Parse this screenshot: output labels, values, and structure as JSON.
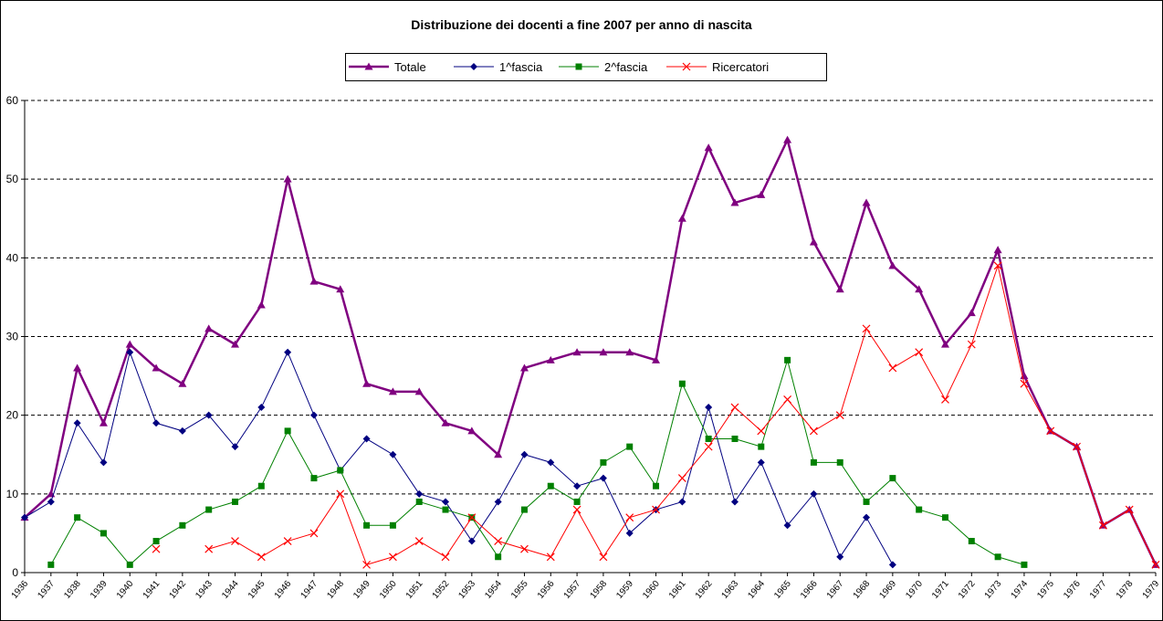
{
  "chart_data": {
    "type": "line",
    "title": "Distribuzione dei docenti a fine 2007 per anno di nascita",
    "categories": [
      "1936",
      "1937",
      "1938",
      "1939",
      "1940",
      "1941",
      "1942",
      "1943",
      "1944",
      "1945",
      "1946",
      "1947",
      "1948",
      "1949",
      "1950",
      "1951",
      "1952",
      "1953",
      "1954",
      "1955",
      "1956",
      "1957",
      "1958",
      "1959",
      "1960",
      "1961",
      "1962",
      "1963",
      "1964",
      "1965",
      "1966",
      "1967",
      "1968",
      "1969",
      "1970",
      "1971",
      "1972",
      "1973",
      "1974",
      "1975",
      "1976",
      "1977",
      "1978",
      "1979"
    ],
    "series": [
      {
        "name": "Totale",
        "color": "#800080",
        "marker": "triangle",
        "values": [
          7,
          10,
          26,
          19,
          29,
          26,
          24,
          31,
          29,
          34,
          50,
          37,
          36,
          24,
          23,
          23,
          19,
          18,
          15,
          26,
          27,
          28,
          28,
          28,
          27,
          45,
          54,
          47,
          48,
          55,
          42,
          36,
          47,
          39,
          36,
          29,
          33,
          41,
          25,
          18,
          16,
          6,
          8,
          1
        ]
      },
      {
        "name": "1^fascia",
        "color": "#000080",
        "marker": "diamond",
        "values": [
          7,
          9,
          19,
          14,
          28,
          19,
          18,
          20,
          16,
          21,
          28,
          20,
          13,
          17,
          15,
          10,
          9,
          4,
          9,
          15,
          14,
          11,
          12,
          5,
          8,
          9,
          21,
          9,
          14,
          6,
          10,
          2,
          7,
          1,
          null,
          null,
          null,
          null,
          null,
          null,
          null,
          null,
          null,
          null
        ]
      },
      {
        "name": "2^fascia",
        "color": "#008000",
        "marker": "square",
        "values": [
          null,
          1,
          7,
          5,
          1,
          4,
          6,
          8,
          9,
          11,
          18,
          12,
          13,
          6,
          6,
          9,
          8,
          7,
          2,
          8,
          11,
          9,
          14,
          16,
          11,
          24,
          17,
          17,
          16,
          27,
          14,
          14,
          9,
          12,
          8,
          7,
          4,
          2,
          1,
          null,
          null,
          null,
          null,
          null
        ]
      },
      {
        "name": "Ricercatori",
        "color": "#ff0000",
        "marker": "x",
        "values": [
          null,
          null,
          null,
          null,
          null,
          3,
          null,
          3,
          4,
          2,
          4,
          5,
          10,
          1,
          2,
          4,
          2,
          7,
          4,
          3,
          2,
          8,
          2,
          7,
          8,
          12,
          16,
          21,
          18,
          22,
          18,
          20,
          31,
          26,
          28,
          22,
          29,
          39,
          24,
          18,
          16,
          6,
          8,
          1
        ]
      }
    ],
    "ylim": [
      0,
      60
    ],
    "yticks": [
      0,
      10,
      20,
      30,
      40,
      50,
      60
    ],
    "grid": true
  }
}
